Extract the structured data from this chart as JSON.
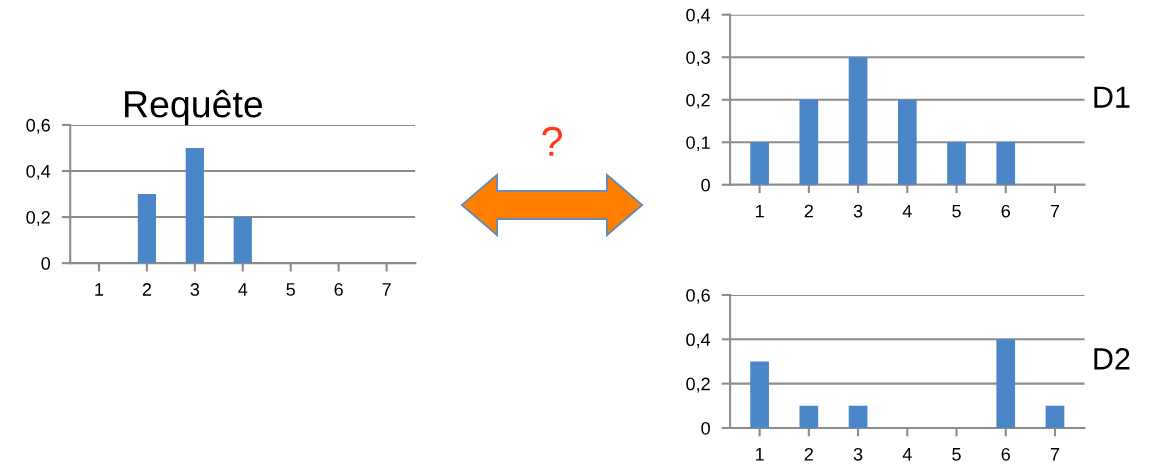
{
  "chart_data": [
    {
      "type": "bar",
      "title": "Requête",
      "categories": [
        "1",
        "2",
        "3",
        "4",
        "5",
        "6",
        "7"
      ],
      "values": [
        0,
        0.3,
        0.5,
        0.2,
        0,
        0,
        0
      ],
      "color": "#4a86c8",
      "ylim": [
        0,
        0.6
      ],
      "yticks": [
        0,
        {
          "value": 0.2,
          "label": "0,2"
        },
        {
          "value": 0.4,
          "label": "0,4"
        },
        {
          "value": 0.6,
          "label": "0,6"
        }
      ],
      "grid": "y",
      "annotations": [
        "?"
      ]
    },
    {
      "type": "bar",
      "title": "D1",
      "categories": [
        "1",
        "2",
        "3",
        "4",
        "5",
        "6",
        "7"
      ],
      "values": [
        0.1,
        0.2,
        0.3,
        0.2,
        0.1,
        0.1,
        0
      ],
      "color": "#4a86c8",
      "ylim": [
        0,
        0.4
      ],
      "yticks": [
        0,
        {
          "value": 0.1,
          "label": "0,1"
        },
        {
          "value": 0.2,
          "label": "0,2"
        },
        {
          "value": 0.3,
          "label": "0,3"
        },
        {
          "value": 0.4,
          "label": "0,4"
        }
      ],
      "grid": "y"
    },
    {
      "type": "bar",
      "title": "D2",
      "categories": [
        "1",
        "2",
        "3",
        "4",
        "5",
        "6",
        "7"
      ],
      "values": [
        0.3,
        0.1,
        0.1,
        0,
        0,
        0.4,
        0.1
      ],
      "color": "#4a86c8",
      "ylim": [
        0,
        0.6
      ],
      "yticks": [
        0,
        {
          "value": 0.2,
          "label": "0,2"
        },
        {
          "value": 0.4,
          "label": "0,4"
        },
        {
          "value": 0.6,
          "label": "0,6"
        }
      ],
      "grid": "y"
    }
  ]
}
